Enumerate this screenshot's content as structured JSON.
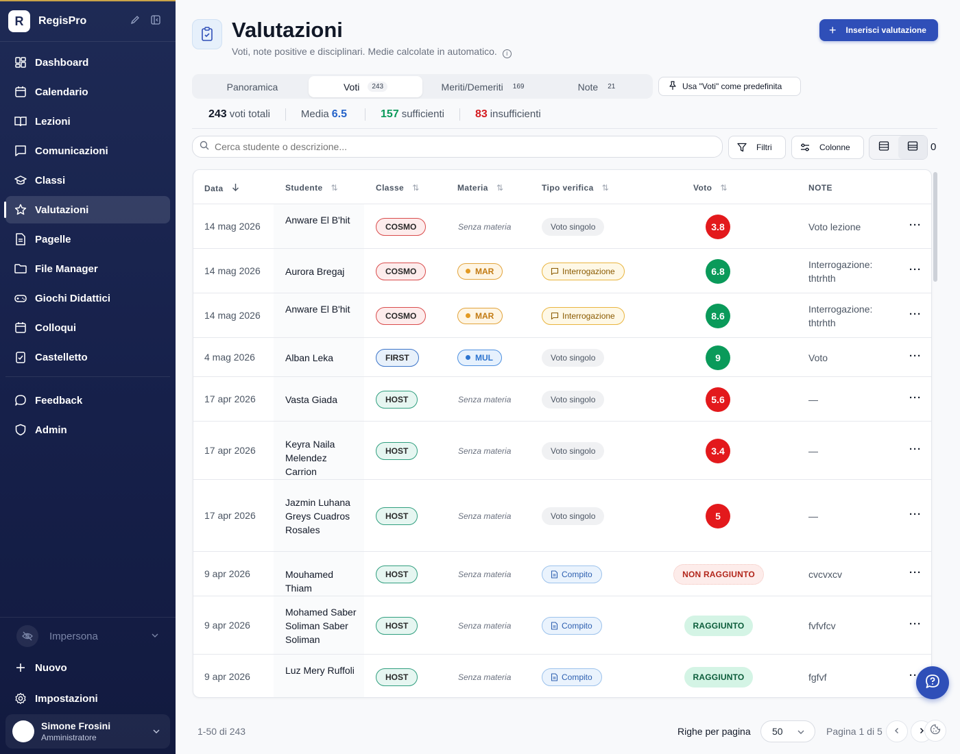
{
  "sidebar": {
    "brand": "RegisPro",
    "nav": [
      {
        "label": "Dashboard",
        "icon": "dashboard-icon"
      },
      {
        "label": "Calendario",
        "icon": "calendar-icon"
      },
      {
        "label": "Lezioni",
        "icon": "book-icon"
      },
      {
        "label": "Comunicazioni",
        "icon": "message-icon"
      },
      {
        "label": "Classi",
        "icon": "graduation-cap-icon"
      },
      {
        "label": "Valutazioni",
        "icon": "star-icon",
        "active": true
      },
      {
        "label": "Pagelle",
        "icon": "report-card-icon"
      },
      {
        "label": "File Manager",
        "icon": "folder-icon"
      },
      {
        "label": "Giochi Didattici",
        "icon": "gamepad-icon"
      },
      {
        "label": "Colloqui",
        "icon": "calendar-check-icon"
      },
      {
        "label": "Castelletto",
        "icon": "clipboard-icon"
      }
    ],
    "nav2": [
      {
        "label": "Feedback",
        "icon": "chat-bubble-icon"
      },
      {
        "label": "Admin",
        "icon": "shield-icon"
      }
    ],
    "impersona": "Impersona",
    "nuovo": "Nuovo",
    "impostazioni": "Impostazioni",
    "user": {
      "name": "Simone Frosini",
      "role": "Amministratore"
    }
  },
  "header": {
    "title": "Valutazioni",
    "subtitle": "Voti, note positive e disciplinari. Medie calcolate in automatico.",
    "primary_button": "Inserisci valutazione"
  },
  "tabs": [
    {
      "label": "Panoramica",
      "count": ""
    },
    {
      "label": "Voti",
      "count": "243",
      "active": true
    },
    {
      "label": "Meriti/Demeriti",
      "count": "169"
    },
    {
      "label": "Note",
      "count": "21"
    }
  ],
  "pin_button": "Usa \"Voti\" come predefinita",
  "stats": {
    "total_value": "243",
    "total_label": "voti totali",
    "media_label": "Media",
    "media_value": "6.5",
    "suff_value": "157",
    "suff_label": "sufficienti",
    "insuff_value": "83",
    "insuff_label": "insufficienti"
  },
  "toolbar": {
    "search_placeholder": "Cerca studente o descrizione...",
    "filters": "Filtri",
    "columns": "Colonne",
    "count": "0"
  },
  "table": {
    "headers": {
      "data": "Data",
      "studente": "Studente",
      "classe": "Classe",
      "materia": "Materia",
      "tipo": "Tipo verifica",
      "voto": "Voto",
      "note": "NOTE"
    },
    "rows": [
      {
        "date": "14 mag 2026",
        "student": "Anware El B'hit",
        "class": "COSMO",
        "subject": "Senza materia",
        "subject_code": "",
        "type": "Voto singolo",
        "type_kind": "singolo",
        "grade": "3.8",
        "grade_color": "red",
        "note": "Voto lezione"
      },
      {
        "date": "14 mag 2026",
        "student": "Aurora Bregaj",
        "class": "COSMO",
        "subject": "MAR",
        "subject_code": "MAR",
        "type": "Interrogazione",
        "type_kind": "interr",
        "grade": "6.8",
        "grade_color": "green",
        "note": "Interrogazione: thtrhth"
      },
      {
        "date": "14 mag 2026",
        "student": "Anware El B'hit",
        "class": "COSMO",
        "subject": "MAR",
        "subject_code": "MAR",
        "type": "Interrogazione",
        "type_kind": "interr",
        "grade": "8.6",
        "grade_color": "green",
        "note": "Interrogazione: thtrhth"
      },
      {
        "date": "4 mag 2026",
        "student": "Alban Leka",
        "class": "FIRST",
        "subject": "MUL",
        "subject_code": "MUL",
        "type": "Voto singolo",
        "type_kind": "singolo",
        "grade": "9",
        "grade_color": "green",
        "note": "Voto"
      },
      {
        "date": "17 apr 2026",
        "student": "Vasta Giada",
        "class": "HOST",
        "subject": "Senza materia",
        "subject_code": "",
        "type": "Voto singolo",
        "type_kind": "singolo",
        "grade": "5.6",
        "grade_color": "red",
        "note": "—"
      },
      {
        "date": "17 apr 2026",
        "student": "Keyra Naila Melendez Carrion",
        "class": "HOST",
        "subject": "Senza materia",
        "subject_code": "",
        "type": "Voto singolo",
        "type_kind": "singolo",
        "grade": "3.4",
        "grade_color": "red",
        "note": "—"
      },
      {
        "date": "17 apr 2026",
        "student": "Jazmin Luhana Greys Cuadros Rosales",
        "class": "HOST",
        "subject": "Senza materia",
        "subject_code": "",
        "type": "Voto singolo",
        "type_kind": "singolo",
        "grade": "5",
        "grade_color": "red",
        "note": "—"
      },
      {
        "date": "9 apr 2026",
        "student": "Mouhamed Thiam",
        "class": "HOST",
        "subject": "Senza materia",
        "subject_code": "",
        "type": "Compito",
        "type_kind": "compito",
        "grade": "NON RAGGIUNTO",
        "grade_color": "no",
        "note": "cvcvxcv"
      },
      {
        "date": "9 apr 2026",
        "student": "Mohamed Saber Soliman Saber Soliman",
        "class": "HOST",
        "subject": "Senza materia",
        "subject_code": "",
        "type": "Compito",
        "type_kind": "compito",
        "grade": "RAGGIUNTO",
        "grade_color": "ok",
        "note": "fvfvfcv"
      },
      {
        "date": "9 apr 2026",
        "student": "Luz Mery Ruffoli",
        "class": "HOST",
        "subject": "Senza materia",
        "subject_code": "",
        "type": "Compito",
        "type_kind": "compito",
        "grade": "RAGGIUNTO",
        "grade_color": "ok",
        "note": "fgfvf"
      }
    ]
  },
  "footer": {
    "range": "1-50 di 243",
    "rows_per_page_label": "Righe per pagina",
    "rows_per_page": "50",
    "page_info": "Pagina 1 di 5"
  },
  "colors": {
    "primary": "#2f4fb8",
    "sidebar": "#1e2a55",
    "grade_red": "#e3191c",
    "grade_green": "#0a9a5a"
  }
}
